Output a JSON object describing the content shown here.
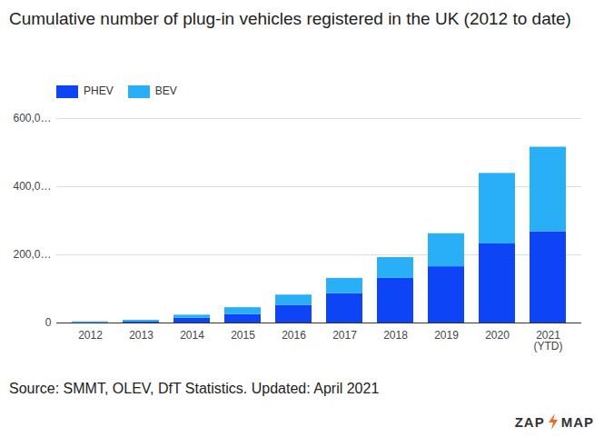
{
  "chart_data": {
    "type": "bar",
    "title": "Cumulative number of plug-in vehicles registered in the UK (2012 to date)",
    "categories": [
      "2012",
      "2013",
      "2014",
      "2015",
      "2016",
      "2017",
      "2018",
      "2019",
      "2020",
      "2021\n(YTD)"
    ],
    "series": [
      {
        "name": "PHEV",
        "color": "#0d44f5",
        "values": [
          1000,
          3000,
          14000,
          25000,
          52000,
          86000,
          131000,
          165000,
          232000,
          268000
        ]
      },
      {
        "name": "BEV",
        "color": "#29aff5",
        "values": [
          2500,
          5000,
          9000,
          20000,
          30000,
          45000,
          61000,
          97000,
          207000,
          248000
        ]
      }
    ],
    "stacked": true,
    "ylim": [
      0,
      600000
    ],
    "yticks": [
      {
        "value": 0,
        "label": "0"
      },
      {
        "value": 200000,
        "label": "200,0…"
      },
      {
        "value": 400000,
        "label": "400,0…"
      },
      {
        "value": 600000,
        "label": "600,0…"
      }
    ],
    "grid": true,
    "legend": "top-left",
    "caption": "Source: SMMT, OLEV, DfT Statistics. Updated: April 2021",
    "logo": [
      "ZAP",
      "MAP"
    ]
  }
}
